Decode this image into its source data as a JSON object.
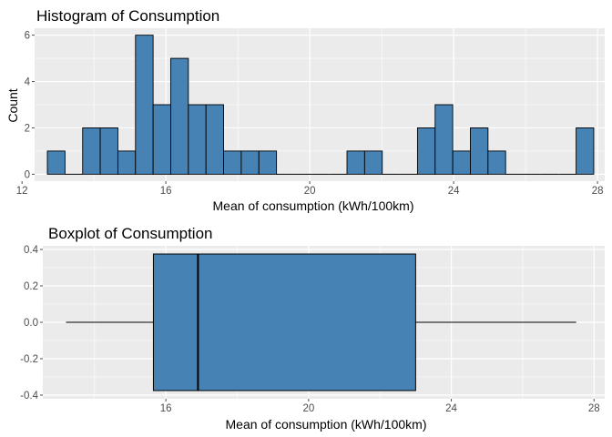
{
  "colors": {
    "panel_bg": "#EBEBEB",
    "grid": "#FFFFFF",
    "fill": "#4682B4",
    "stroke": "#000000",
    "tick": "#4D4D4D"
  },
  "chart_data": [
    {
      "type": "histogram",
      "title": "Histogram of Consumption",
      "xlabel": "Mean of consumption (kWh/100km)",
      "ylabel": "Count",
      "xlim": [
        12.35,
        28.2
      ],
      "ylim": [
        -0.3,
        6.3
      ],
      "x_ticks": [
        12,
        16,
        20,
        24,
        28
      ],
      "y_ticks": [
        0,
        2,
        4,
        6
      ],
      "bin_width": 0.49,
      "bins": [
        {
          "center": 12.95,
          "count": 1
        },
        {
          "center": 13.44,
          "count": 0
        },
        {
          "center": 13.93,
          "count": 2
        },
        {
          "center": 14.42,
          "count": 2
        },
        {
          "center": 14.91,
          "count": 1
        },
        {
          "center": 15.4,
          "count": 6
        },
        {
          "center": 15.89,
          "count": 3
        },
        {
          "center": 16.38,
          "count": 5
        },
        {
          "center": 16.87,
          "count": 3
        },
        {
          "center": 17.36,
          "count": 3
        },
        {
          "center": 17.85,
          "count": 1
        },
        {
          "center": 18.34,
          "count": 1
        },
        {
          "center": 18.83,
          "count": 1
        },
        {
          "center": 19.32,
          "count": 0
        },
        {
          "center": 19.81,
          "count": 0
        },
        {
          "center": 20.3,
          "count": 0
        },
        {
          "center": 20.79,
          "count": 0
        },
        {
          "center": 21.28,
          "count": 1
        },
        {
          "center": 21.77,
          "count": 1
        },
        {
          "center": 22.26,
          "count": 0
        },
        {
          "center": 22.75,
          "count": 0
        },
        {
          "center": 23.24,
          "count": 2
        },
        {
          "center": 23.73,
          "count": 3
        },
        {
          "center": 24.22,
          "count": 1
        },
        {
          "center": 24.71,
          "count": 2
        },
        {
          "center": 25.2,
          "count": 1
        },
        {
          "center": 25.69,
          "count": 0
        },
        {
          "center": 26.18,
          "count": 0
        },
        {
          "center": 26.67,
          "count": 0
        },
        {
          "center": 27.16,
          "count": 0
        },
        {
          "center": 27.65,
          "count": 2
        }
      ]
    },
    {
      "type": "boxplot",
      "orientation": "horizontal",
      "title": "Boxplot of Consumption",
      "xlabel": "Mean of consumption (kWh/100km)",
      "ylabel": "",
      "xlim": [
        12.55,
        28.3
      ],
      "ylim": [
        -0.42,
        0.42
      ],
      "x_ticks": [
        16,
        20,
        24,
        28
      ],
      "y_ticks": [
        -0.4,
        -0.2,
        0.0,
        0.2,
        0.4
      ],
      "y_tick_labels": [
        "-0.4",
        "-0.2",
        "0.0",
        "0.2",
        "0.4"
      ],
      "box": {
        "min": 13.2,
        "q1": 15.65,
        "median": 16.9,
        "q3": 23.0,
        "max": 27.5,
        "half_height": 0.375
      }
    }
  ]
}
